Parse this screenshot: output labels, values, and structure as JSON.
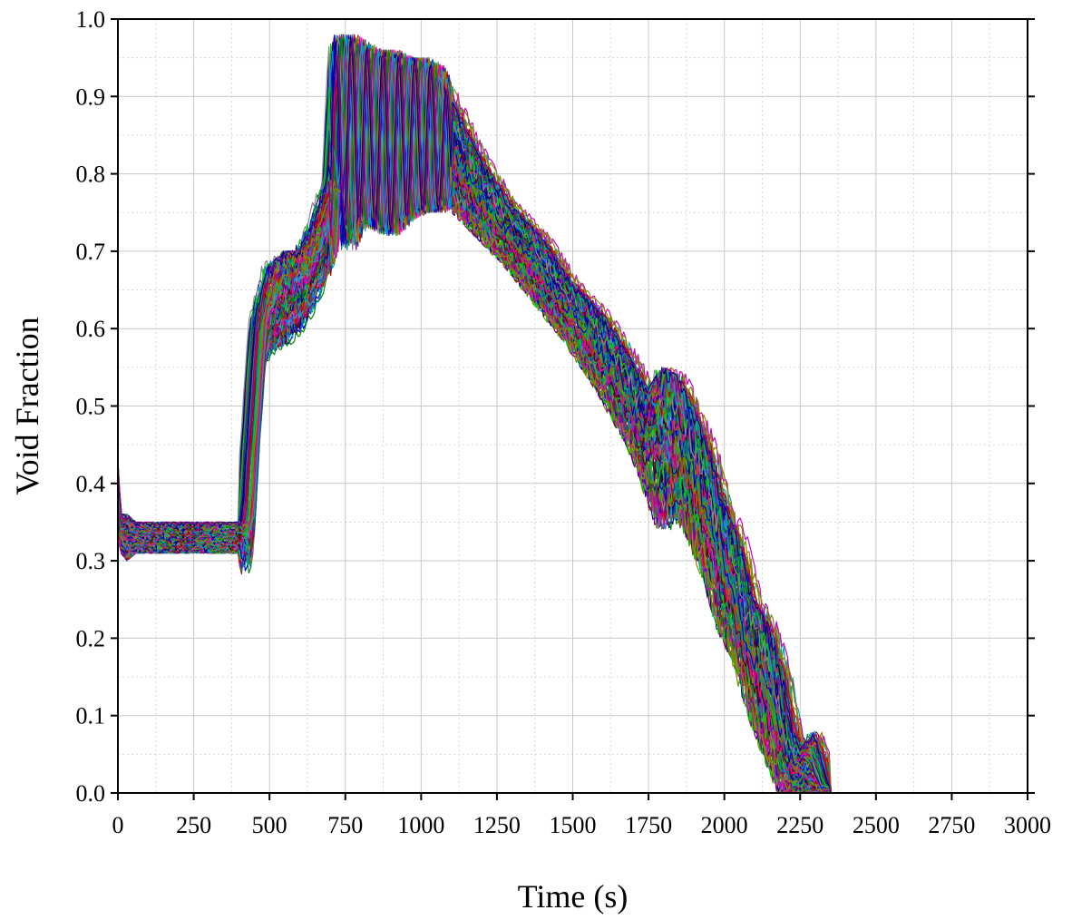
{
  "chart_data": {
    "type": "line",
    "title": "",
    "xlabel": "Time (s)",
    "ylabel": "Void Fraction",
    "xlim": [
      0,
      3000
    ],
    "ylim": [
      0,
      1.0
    ],
    "xticks": [
      0,
      250,
      500,
      750,
      1000,
      1250,
      1500,
      1750,
      2000,
      2250,
      2500,
      2750,
      3000
    ],
    "xtick_labels": [
      "0",
      "250",
      "500",
      "750",
      "1000",
      "1250",
      "1500",
      "1750",
      "2000",
      "2250",
      "2500",
      "2750",
      "3000"
    ],
    "yticks": [
      0,
      0.1,
      0.2,
      0.3,
      0.4,
      0.5,
      0.6,
      0.7,
      0.8,
      0.9,
      1.0
    ],
    "ytick_labels": [
      "0.0",
      "0.1",
      "0.2",
      "0.3",
      "0.4",
      "0.5",
      "0.6",
      "0.7",
      "0.8",
      "0.9",
      "1.0"
    ],
    "grid": true,
    "legend": "none",
    "series_count_estimate": 120,
    "envelope": {
      "x": [
        0,
        10,
        30,
        60,
        150,
        300,
        400,
        410,
        420,
        430,
        440,
        460,
        500,
        550,
        600,
        650,
        700,
        720,
        740,
        760,
        800,
        850,
        900,
        950,
        1000,
        1050,
        1100,
        1200,
        1300,
        1400,
        1500,
        1600,
        1700,
        1750,
        1800,
        1850,
        1900,
        1950,
        2000,
        2050,
        2100,
        2150,
        2200,
        2230,
        2260,
        2300,
        2350,
        3000
      ],
      "upper": [
        0.43,
        0.36,
        0.36,
        0.35,
        0.35,
        0.35,
        0.35,
        0.35,
        0.38,
        0.45,
        0.5,
        0.62,
        0.68,
        0.7,
        0.7,
        0.74,
        0.8,
        0.96,
        0.98,
        0.98,
        0.97,
        0.96,
        0.96,
        0.95,
        0.95,
        0.94,
        0.9,
        0.82,
        0.76,
        0.72,
        0.66,
        0.62,
        0.56,
        0.52,
        0.55,
        0.54,
        0.5,
        0.45,
        0.38,
        0.33,
        0.25,
        0.22,
        0.15,
        0.08,
        0.06,
        0.08,
        0.01,
        0.0
      ],
      "lower": [
        0.33,
        0.31,
        0.3,
        0.31,
        0.31,
        0.31,
        0.31,
        0.28,
        0.3,
        0.38,
        0.45,
        0.55,
        0.57,
        0.58,
        0.6,
        0.64,
        0.7,
        0.8,
        0.75,
        0.7,
        0.74,
        0.73,
        0.72,
        0.74,
        0.75,
        0.75,
        0.76,
        0.72,
        0.68,
        0.63,
        0.58,
        0.52,
        0.45,
        0.4,
        0.34,
        0.36,
        0.33,
        0.28,
        0.21,
        0.17,
        0.1,
        0.05,
        0.0,
        0.0,
        0.0,
        0.0,
        0.0,
        0.0
      ]
    }
  },
  "colors": {
    "palette": [
      "#0000cc",
      "#cc0000",
      "#008800",
      "#cc00cc",
      "#00aaaa",
      "#888800",
      "#000088",
      "#880088",
      "#008888",
      "#660000",
      "#888888",
      "#0088ff",
      "#00cc00",
      "#ff0088",
      "#886600",
      "#224488"
    ]
  }
}
